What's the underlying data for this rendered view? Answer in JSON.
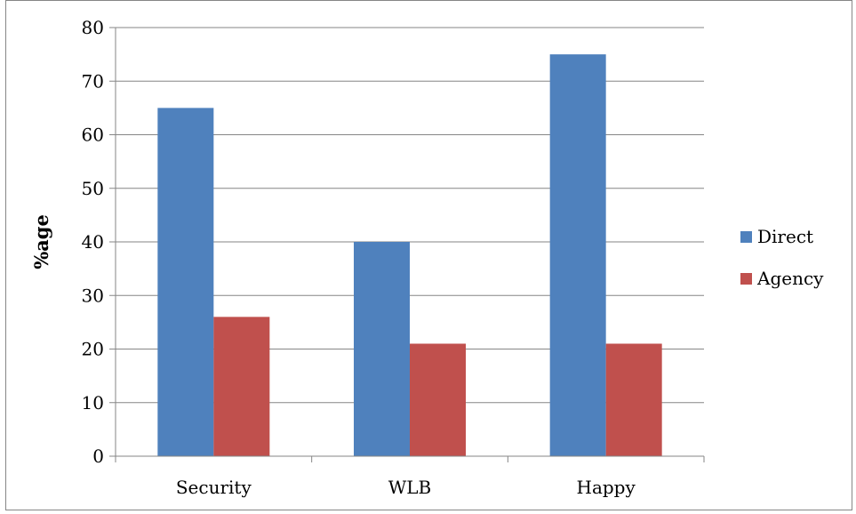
{
  "chart_data": {
    "type": "bar",
    "title": "",
    "xlabel": "",
    "ylabel": "%age",
    "categories": [
      "Security",
      "WLB",
      "Happy"
    ],
    "series": [
      {
        "name": "Direct",
        "values": [
          65,
          40,
          75
        ]
      },
      {
        "name": "Agency",
        "values": [
          26,
          21,
          21
        ]
      }
    ],
    "ylim": [
      0,
      80
    ],
    "yticks": [
      0,
      10,
      20,
      30,
      40,
      50,
      60,
      70,
      80
    ],
    "grid": true,
    "legend_position": "right",
    "colors": {
      "Direct": "#4F81BD",
      "Agency": "#C0504D",
      "gridline": "#868686",
      "axis": "#868686"
    }
  }
}
